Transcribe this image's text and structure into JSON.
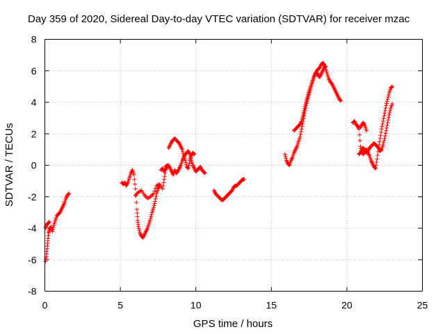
{
  "chart_data": {
    "type": "scatter",
    "title": "Day 359 of 2020, Sidereal Day-to-day VTEC variation (SDTVAR) for receiver mzac",
    "xlabel": "GPS time / hours",
    "ylabel": "SDTVAR / TECUs",
    "xlim": [
      0,
      25
    ],
    "ylim": [
      -8,
      8
    ],
    "xticks": [
      "0",
      "5",
      "10",
      "15",
      "20",
      "25"
    ],
    "yticks": [
      "-8",
      "-6",
      "-4",
      "-2",
      "0",
      "2",
      "4",
      "6",
      "8"
    ],
    "grid": true,
    "marker": "+",
    "colors": {
      "series": "#ff0000",
      "grid": "#a0a0a0",
      "axis": "#000000"
    },
    "segments": [
      {
        "x": [
          0.05,
          0.1,
          0.15,
          0.2,
          0.25,
          0.3,
          0.4,
          0.5,
          0.6,
          0.7,
          0.8,
          0.9,
          1.0,
          1.1,
          1.2,
          1.3,
          1.4,
          1.5,
          1.6
        ],
        "y": [
          -6.1,
          -5.8,
          -5.3,
          -4.8,
          -4.3,
          -4.1,
          -3.9,
          -4.2,
          -3.8,
          -3.5,
          -3.2,
          -3.1,
          -3.0,
          -2.8,
          -2.6,
          -2.4,
          -2.1,
          -1.9,
          -1.8
        ]
      },
      {
        "x": [
          0.05,
          0.1,
          0.2,
          0.3
        ],
        "y": [
          -4.0,
          -3.8,
          -3.7,
          -3.6
        ]
      },
      {
        "x": [
          5.1,
          5.2,
          5.3,
          5.4,
          5.5,
          5.6,
          5.7,
          5.8,
          5.9,
          6.0,
          6.1,
          6.15,
          6.2,
          6.3,
          6.4,
          6.5,
          6.6,
          6.7,
          6.8,
          6.9,
          7.0,
          7.1,
          7.2,
          7.3,
          7.4,
          7.5,
          7.6
        ],
        "y": [
          -1.1,
          -1.2,
          -1.1,
          -1.3,
          -1.1,
          -0.8,
          -0.5,
          -0.3,
          -0.6,
          -1.5,
          -2.8,
          -3.5,
          -3.9,
          -4.3,
          -4.5,
          -4.6,
          -4.4,
          -4.2,
          -4.0,
          -3.7,
          -3.4,
          -3.0,
          -2.7,
          -2.3,
          -1.8,
          -1.5,
          -1.3
        ]
      },
      {
        "x": [
          6.0,
          6.2,
          6.4,
          6.6,
          6.8,
          7.0,
          7.2,
          7.4,
          7.6,
          7.8,
          7.9,
          8.0,
          8.1,
          8.2,
          8.3,
          8.4,
          8.5,
          8.6,
          8.7,
          8.8,
          8.9,
          9.0,
          9.1,
          9.2,
          9.3,
          9.4,
          9.5,
          9.6,
          9.7,
          9.8,
          9.9,
          10.0,
          10.1,
          10.2,
          10.3,
          10.4,
          10.5,
          10.6
        ],
        "y": [
          -1.9,
          -1.7,
          -1.6,
          -1.9,
          -2.1,
          -2.0,
          -1.8,
          -1.3,
          -1.2,
          -1.5,
          -0.9,
          -0.3,
          -0.1,
          0.0,
          -0.2,
          -0.4,
          -0.6,
          -0.3,
          -0.5,
          -0.4,
          -0.2,
          0.0,
          0.3,
          0.5,
          0.7,
          0.8,
          0.9,
          0.7,
          0.3,
          0.0,
          -0.2,
          -0.4,
          -0.3,
          -0.2,
          -0.1,
          -0.3,
          -0.4,
          -0.5
        ]
      },
      {
        "x": [
          8.2,
          8.3,
          8.4,
          8.5,
          8.6,
          8.7,
          8.8,
          8.9,
          9.0,
          9.1,
          9.2,
          9.3,
          9.4,
          9.5,
          9.6,
          9.7,
          9.8,
          9.9
        ],
        "y": [
          1.1,
          1.3,
          1.5,
          1.6,
          1.7,
          1.6,
          1.5,
          1.4,
          1.2,
          1.0,
          0.6,
          0.3,
          -0.1,
          -0.2,
          0.3,
          0.6,
          0.8,
          0.7
        ]
      },
      {
        "x": [
          7.7,
          7.8,
          7.9,
          8.0,
          8.1
        ],
        "y": [
          -0.3,
          -0.2,
          -0.4,
          -0.1,
          0.0
        ]
      },
      {
        "x": [
          11.2,
          11.3,
          11.4,
          11.5,
          11.6,
          11.7,
          11.8,
          11.9,
          12.0,
          12.1,
          12.2,
          12.3,
          12.4,
          12.5,
          12.6,
          12.7,
          12.8,
          12.9,
          13.0,
          13.1,
          13.2
        ],
        "y": [
          -1.6,
          -1.8,
          -1.9,
          -2.0,
          -2.1,
          -2.2,
          -2.2,
          -2.1,
          -2.0,
          -1.9,
          -1.8,
          -1.7,
          -1.6,
          -1.4,
          -1.3,
          -1.3,
          -1.2,
          -1.1,
          -1.0,
          -0.9,
          -0.9
        ]
      },
      {
        "x": [
          15.9,
          16.0,
          16.1,
          16.2,
          16.3,
          16.4,
          16.5,
          16.6,
          16.7,
          16.8,
          16.9,
          17.0,
          17.1,
          17.2,
          17.3,
          17.4,
          17.5,
          17.6,
          17.7,
          17.8,
          17.9,
          18.0,
          18.1,
          18.2,
          18.3,
          18.4,
          18.5,
          18.6,
          18.7,
          18.8,
          18.9,
          19.0,
          19.1,
          19.2,
          19.3,
          19.4,
          19.5,
          19.6
        ],
        "y": [
          0.7,
          0.3,
          0.1,
          0.0,
          0.3,
          0.5,
          0.8,
          1.0,
          1.2,
          1.5,
          1.8,
          2.3,
          2.8,
          3.3,
          3.8,
          4.2,
          4.5,
          4.9,
          5.2,
          5.5,
          5.8,
          6.0,
          6.1,
          6.2,
          6.4,
          6.5,
          6.4,
          6.1,
          5.8,
          5.5,
          5.3,
          5.2,
          5.0,
          4.8,
          4.6,
          4.4,
          4.2,
          4.1
        ]
      },
      {
        "x": [
          16.5,
          16.6,
          16.7,
          16.8,
          16.9,
          17.0,
          17.1,
          17.2,
          17.3,
          17.4,
          17.5,
          17.6,
          17.7,
          17.8,
          17.9,
          18.0,
          18.1,
          18.2,
          18.3,
          18.4,
          18.5,
          18.6
        ],
        "y": [
          2.2,
          2.3,
          2.4,
          2.5,
          2.6,
          2.8,
          3.2,
          3.6,
          4.0,
          4.4,
          4.7,
          5.0,
          5.3,
          5.6,
          5.8,
          5.9,
          5.7,
          5.6,
          5.8,
          6.0,
          6.2,
          6.3
        ]
      },
      {
        "x": [
          20.4,
          20.5,
          20.6,
          20.7,
          20.8,
          20.9,
          21.0,
          21.1,
          21.2,
          21.3,
          21.4,
          21.5,
          21.6,
          21.7,
          21.8,
          21.9,
          22.0,
          22.1,
          22.2,
          22.3,
          22.4,
          22.5,
          22.6,
          22.7,
          22.8,
          22.9,
          23.0
        ],
        "y": [
          2.7,
          2.8,
          2.6,
          2.5,
          2.3,
          1.2,
          0.8,
          0.7,
          0.9,
          1.0,
          0.8,
          0.6,
          0.3,
          0.1,
          -0.1,
          -0.2,
          0.4,
          1.1,
          1.7,
          2.3,
          2.8,
          3.3,
          3.8,
          4.2,
          4.6,
          4.9,
          5.0
        ]
      },
      {
        "x": [
          20.8,
          20.9,
          21.0,
          21.1,
          21.2,
          21.3,
          21.4,
          21.5,
          21.6,
          21.7,
          21.8,
          21.9,
          22.0,
          22.1,
          22.2,
          22.3,
          22.4,
          22.5,
          22.6,
          22.7,
          22.8,
          22.9,
          23.0
        ],
        "y": [
          0.7,
          0.8,
          1.0,
          1.1,
          0.9,
          0.8,
          0.9,
          1.1,
          1.2,
          1.3,
          1.4,
          1.3,
          1.2,
          1.1,
          0.9,
          1.0,
          1.3,
          1.7,
          2.2,
          2.7,
          3.2,
          3.6,
          3.9
        ]
      },
      {
        "x": [
          20.9,
          21.0,
          21.1,
          21.2,
          21.3
        ],
        "y": [
          2.4,
          2.6,
          2.7,
          2.5,
          2.2
        ]
      }
    ]
  }
}
